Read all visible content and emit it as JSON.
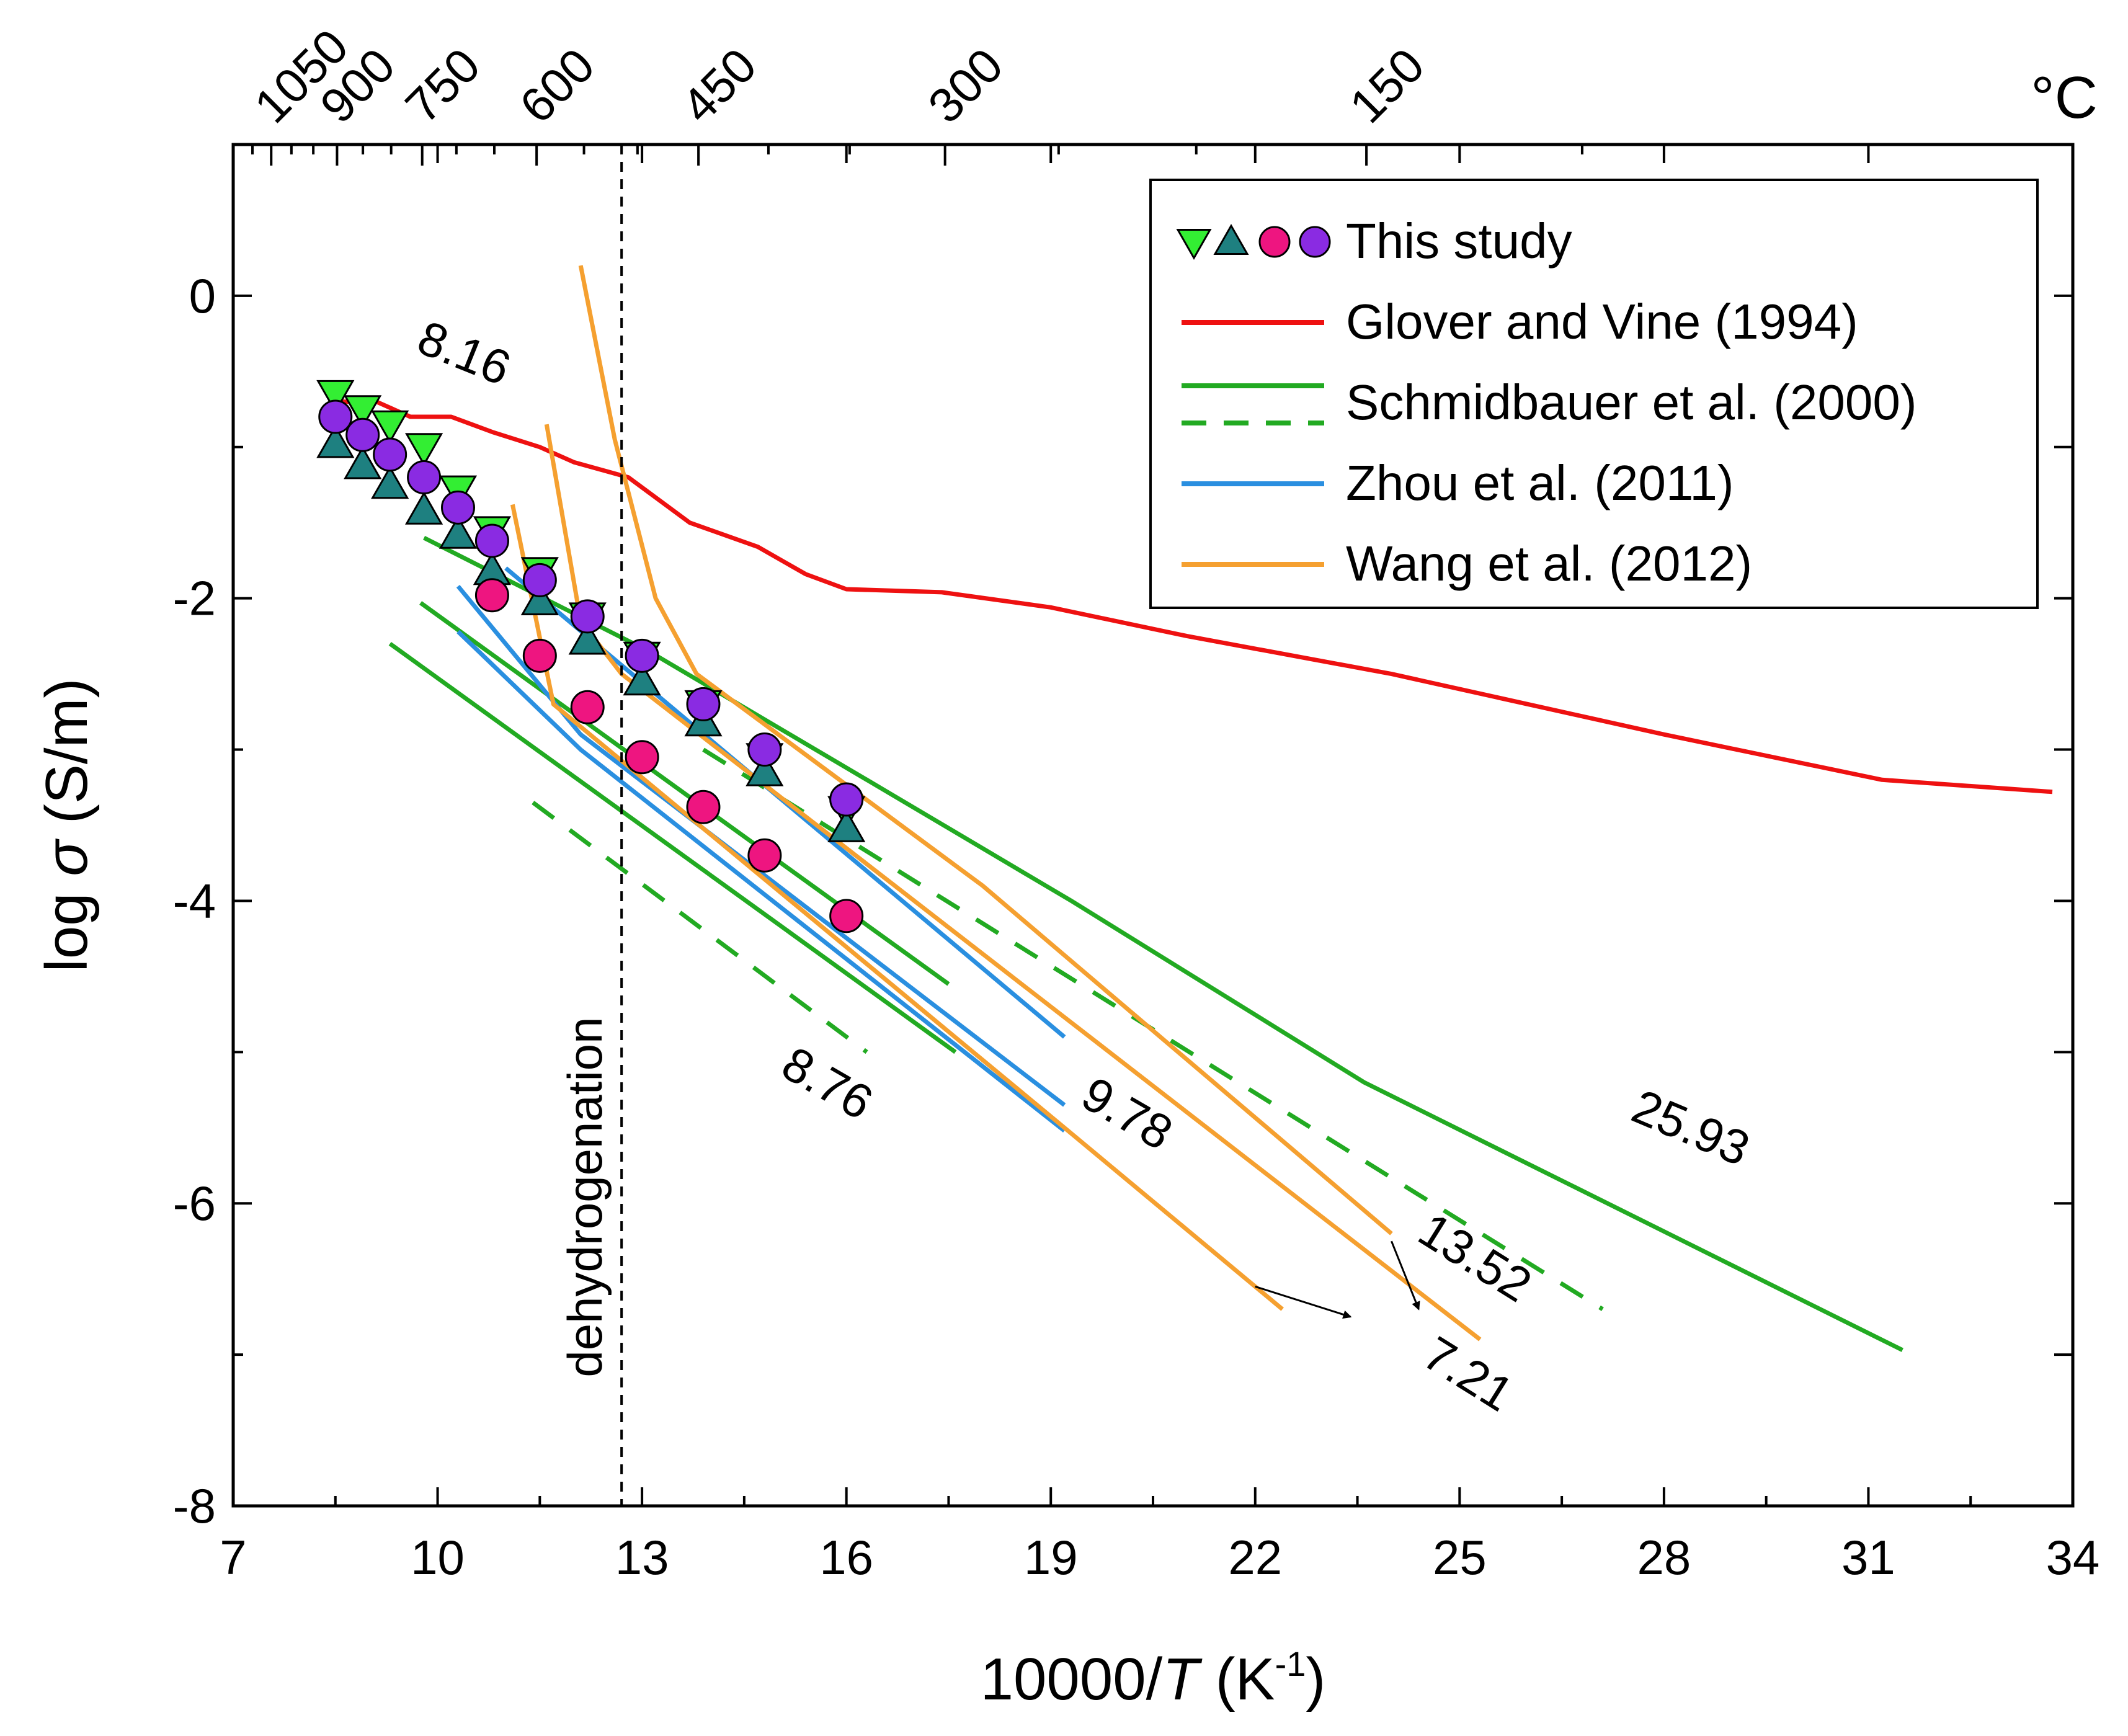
{
  "chart_data": {
    "type": "line",
    "title": "",
    "xlabel": {
      "prefix": "10000/",
      "italic": "T",
      "unit_open": " (K",
      "sup": "-1",
      "unit_close": ")"
    },
    "ylabel": {
      "prefix": "log ",
      "italic": "σ",
      "unit": " (S/m)"
    },
    "xlim": [
      7,
      34
    ],
    "ylim": [
      -8,
      1
    ],
    "x_ticks": [
      7,
      10,
      13,
      16,
      19,
      22,
      25,
      28,
      31,
      34
    ],
    "x_tick_labels": [
      "7",
      "10",
      "13",
      "16",
      "19",
      "22",
      "25",
      "28",
      "31",
      "34"
    ],
    "y_ticks": [
      -8,
      -6,
      -4,
      -2,
      0
    ],
    "y_tick_labels": [
      "-8",
      "-6",
      "-4",
      "-2",
      "0"
    ],
    "top_axis": {
      "unit": "°C",
      "ticks_celsius": [
        1050,
        900,
        750,
        600,
        450,
        300,
        150
      ],
      "tick_labels": [
        "1050",
        "900",
        "750",
        "600",
        "450",
        "300",
        "150"
      ]
    },
    "dehydrogenation": {
      "x": 12.7,
      "label": "dehydrogenation"
    },
    "legend": {
      "position": "top-right",
      "entries": [
        {
          "label": "This study",
          "kind": "markers"
        },
        {
          "label": "Glover and Vine (1994)",
          "kind": "line",
          "color": "#ee1111",
          "dash": false
        },
        {
          "label": "Schmidbauer et al. (2000)",
          "kind": "line2",
          "color": "#22aa22",
          "dash": false
        },
        {
          "label": "Zhou et al. (2011)",
          "kind": "line",
          "color": "#2a8fe0",
          "dash": false
        },
        {
          "label": "Wang et al. (2012)",
          "kind": "line",
          "color": "#f5a030",
          "dash": false
        }
      ]
    },
    "series": [
      {
        "name": "Glover and Vine (1994)",
        "color": "#ee1111",
        "dash": false,
        "width": 7,
        "points": [
          [
            8.5,
            -0.7
          ],
          [
            9.1,
            -0.7
          ],
          [
            9.6,
            -0.8
          ],
          [
            10.2,
            -0.8
          ],
          [
            10.8,
            -0.9
          ],
          [
            11.5,
            -1.0
          ],
          [
            12.0,
            -1.1
          ],
          [
            12.8,
            -1.2
          ],
          [
            13.7,
            -1.5
          ],
          [
            14.7,
            -1.66
          ],
          [
            15.4,
            -1.84
          ],
          [
            16.0,
            -1.94
          ],
          [
            17.4,
            -1.96
          ],
          [
            19.0,
            -2.06
          ],
          [
            21.0,
            -2.25
          ],
          [
            24.0,
            -2.5
          ],
          [
            28.0,
            -2.9
          ],
          [
            31.2,
            -3.2
          ],
          [
            33.7,
            -3.28
          ]
        ]
      },
      {
        "name": "Schmidbauer et al. (2000) solid 25.93",
        "color": "#22aa22",
        "dash": false,
        "width": 7,
        "points": [
          [
            9.8,
            -1.6
          ],
          [
            13.1,
            -2.35
          ],
          [
            16.3,
            -3.2
          ],
          [
            19.3,
            -4.0
          ],
          [
            23.6,
            -5.2
          ],
          [
            31.5,
            -6.97
          ]
        ]
      },
      {
        "name": "Schmidbauer et al. (2000) solid A",
        "color": "#22aa22",
        "dash": false,
        "width": 7,
        "points": [
          [
            9.75,
            -2.03
          ],
          [
            17.5,
            -4.55
          ]
        ]
      },
      {
        "name": "Schmidbauer et al. (2000) solid B 8.76",
        "color": "#22aa22",
        "dash": false,
        "width": 7,
        "points": [
          [
            9.3,
            -2.3
          ],
          [
            17.6,
            -5.0
          ]
        ]
      },
      {
        "name": "Schmidbauer et al. (2000) dashed upper",
        "color": "#22aa22",
        "dash": true,
        "width": 7,
        "points": [
          [
            13.9,
            -3.0
          ],
          [
            27.1,
            -6.7
          ]
        ]
      },
      {
        "name": "Schmidbauer et al. (2000) dashed lower",
        "color": "#22aa22",
        "dash": true,
        "width": 7,
        "points": [
          [
            11.4,
            -3.35
          ],
          [
            16.3,
            -5.0
          ]
        ]
      },
      {
        "name": "Zhou et al. (2011) 1",
        "color": "#2a8fe0",
        "dash": false,
        "width": 7,
        "points": [
          [
            11.0,
            -1.8
          ],
          [
            19.2,
            -4.9
          ]
        ]
      },
      {
        "name": "Zhou et al. (2011) 2",
        "color": "#2a8fe0",
        "dash": false,
        "width": 7,
        "points": [
          [
            10.3,
            -1.92
          ],
          [
            12.1,
            -2.9
          ],
          [
            19.2,
            -5.35
          ]
        ]
      },
      {
        "name": "Zhou et al. (2011) 3",
        "color": "#2a8fe0",
        "dash": false,
        "width": 7,
        "points": [
          [
            10.3,
            -2.22
          ],
          [
            12.1,
            -3.0
          ],
          [
            19.2,
            -5.52
          ]
        ]
      },
      {
        "name": "Wang et al. (2012) 1",
        "color": "#f5a030",
        "dash": false,
        "width": 7,
        "points": [
          [
            12.1,
            0.2
          ],
          [
            12.6,
            -0.95
          ],
          [
            13.2,
            -2.0
          ],
          [
            13.8,
            -2.5
          ],
          [
            18.0,
            -3.9
          ],
          [
            24.0,
            -6.2
          ]
        ]
      },
      {
        "name": "Wang et al. (2012) 2",
        "color": "#f5a030",
        "dash": false,
        "width": 7,
        "points": [
          [
            11.6,
            -0.85
          ],
          [
            12.1,
            -2.15
          ],
          [
            12.7,
            -2.5
          ],
          [
            25.3,
            -6.9
          ]
        ]
      },
      {
        "name": "Wang et al. (2012) 3",
        "color": "#f5a030",
        "dash": false,
        "width": 7,
        "points": [
          [
            11.1,
            -1.38
          ],
          [
            11.7,
            -2.7
          ],
          [
            19.2,
            -5.5
          ],
          [
            22.4,
            -6.7
          ]
        ]
      }
    ],
    "markers": [
      {
        "name": "This study (down-triangle)",
        "shape": "triangle-down",
        "color": "#33ee33",
        "points": [
          [
            8.5,
            -0.65
          ],
          [
            8.9,
            -0.75
          ],
          [
            9.3,
            -0.85
          ],
          [
            9.8,
            -1.0
          ],
          [
            10.3,
            -1.28
          ],
          [
            10.8,
            -1.55
          ],
          [
            11.5,
            -1.82
          ],
          [
            12.2,
            -2.12
          ],
          [
            13.0,
            -2.38
          ],
          [
            13.9,
            -2.7
          ],
          [
            14.8,
            -3.05
          ],
          [
            16.0,
            -3.4
          ]
        ]
      },
      {
        "name": "This study (up-triangle)",
        "shape": "triangle-up",
        "color": "#1e8080",
        "points": [
          [
            8.5,
            -0.98
          ],
          [
            8.9,
            -1.12
          ],
          [
            9.3,
            -1.25
          ],
          [
            9.8,
            -1.42
          ],
          [
            10.3,
            -1.58
          ],
          [
            10.8,
            -1.82
          ],
          [
            11.5,
            -2.02
          ],
          [
            12.2,
            -2.28
          ],
          [
            13.0,
            -2.55
          ],
          [
            13.9,
            -2.82
          ],
          [
            14.8,
            -3.15
          ],
          [
            16.0,
            -3.52
          ]
        ]
      },
      {
        "name": "This study (pink circle)",
        "shape": "circle",
        "color": "#ee1580",
        "points": [
          [
            10.8,
            -1.98
          ],
          [
            11.5,
            -2.38
          ],
          [
            12.2,
            -2.72
          ],
          [
            13.0,
            -3.05
          ],
          [
            13.9,
            -3.38
          ],
          [
            14.8,
            -3.7
          ],
          [
            16.0,
            -4.1
          ]
        ]
      },
      {
        "name": "This study (purple circle)",
        "shape": "circle",
        "color": "#8a2be2",
        "points": [
          [
            8.5,
            -0.8
          ],
          [
            8.9,
            -0.92
          ],
          [
            9.3,
            -1.05
          ],
          [
            9.8,
            -1.2
          ],
          [
            10.3,
            -1.4
          ],
          [
            10.8,
            -1.62
          ],
          [
            11.5,
            -1.88
          ],
          [
            12.2,
            -2.12
          ],
          [
            13.0,
            -2.38
          ],
          [
            13.9,
            -2.7
          ],
          [
            14.8,
            -3.0
          ],
          [
            16.0,
            -3.33
          ]
        ]
      }
    ],
    "annotations": [
      {
        "text": "8.16",
        "x": 10.3,
        "y": -0.48,
        "rotate": 22
      },
      {
        "text": "8.76",
        "x": 15.6,
        "y": -5.3,
        "rotate": 30
      },
      {
        "text": "9.78",
        "x": 20.0,
        "y": -5.5,
        "rotate": 30
      },
      {
        "text": "25.93",
        "x": 28.3,
        "y": -5.6,
        "rotate": 23
      },
      {
        "text": "13.52",
        "x": 25.1,
        "y": -6.45,
        "rotate": 32
      },
      {
        "text": "7.21",
        "x": 25.0,
        "y": -7.22,
        "rotate": 32
      }
    ],
    "arrows": [
      {
        "from": [
          22.0,
          -6.55
        ],
        "to": [
          23.4,
          -6.75
        ]
      },
      {
        "from": [
          24.0,
          -6.25
        ],
        "to": [
          24.4,
          -6.7
        ]
      }
    ]
  }
}
